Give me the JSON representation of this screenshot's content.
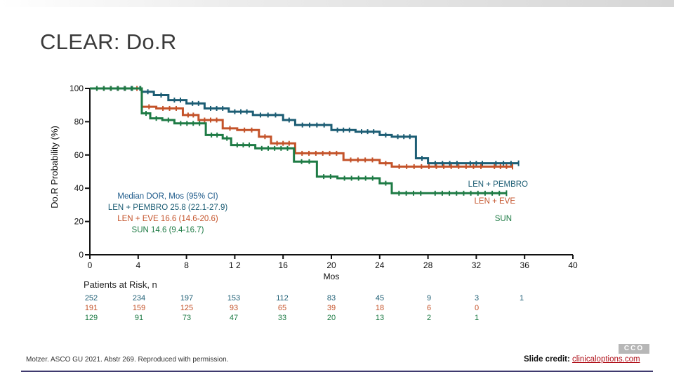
{
  "slide": {
    "title": "CLEAR: Do.R",
    "footnote": "Motzer. ASCO GU 2021. Abstr 269. Reproduced with permission.",
    "credit_label": "Slide credit:",
    "credit_link": "clinicaloptions.com",
    "logo_text": "CCO"
  },
  "colors": {
    "len_pembro": "#1c5d74",
    "len_eve": "#c4532a",
    "sun": "#1e7b45",
    "annotation": "#1d5a8a"
  },
  "annotation": {
    "heading": "Median DOR, Mos (95% CI)",
    "lines": [
      {
        "text": "LEN + PEMBRO 25.8 (22.1-27.9)",
        "series": "len_pembro"
      },
      {
        "text": "LEN + EVE 16.6 (14.6-20.6)",
        "series": "len_eve"
      },
      {
        "text": "SUN 14.6 (9.4-16.7)",
        "series": "sun"
      }
    ]
  },
  "risk_table": {
    "title": "Patients at Risk, n",
    "rows": [
      {
        "series": "len_pembro",
        "values": [
          "252",
          "234",
          "197",
          "153",
          "112",
          "83",
          "45",
          "9",
          "3",
          "1"
        ]
      },
      {
        "series": "len_eve",
        "values": [
          "191",
          "159",
          "125",
          "93",
          "65",
          "39",
          "18",
          "6",
          "0",
          ""
        ]
      },
      {
        "series": "sun",
        "values": [
          "129",
          "91",
          "73",
          "47",
          "33",
          "20",
          "13",
          "2",
          "1",
          ""
        ]
      }
    ]
  },
  "chart_data": {
    "type": "line",
    "title": "CLEAR: Do.R",
    "xlabel": "Mos",
    "ylabel": "Do.R Probability (%)",
    "xlim": [
      0,
      40
    ],
    "ylim": [
      0,
      100
    ],
    "x_ticks": [
      0,
      4,
      8,
      12,
      16,
      20,
      24,
      28,
      32,
      36,
      40
    ],
    "x_tick_labels": [
      "0",
      "4",
      "8",
      "1 2",
      "16",
      "20",
      "24",
      "28",
      "32",
      "36",
      "40"
    ],
    "y_ticks": [
      0,
      20,
      40,
      60,
      80,
      100
    ],
    "y_tick_labels": [
      "0",
      "20",
      "40",
      "60",
      "80",
      "100"
    ],
    "step": true,
    "series": [
      {
        "key": "len_pembro",
        "name": "LEN + PEMBRO",
        "points": [
          [
            0,
            100
          ],
          [
            4.0,
            100
          ],
          [
            4.3,
            98
          ],
          [
            5.3,
            96
          ],
          [
            6.5,
            93
          ],
          [
            8.0,
            91
          ],
          [
            9.5,
            88
          ],
          [
            11.5,
            86
          ],
          [
            13.5,
            84
          ],
          [
            16.0,
            81
          ],
          [
            17.0,
            78
          ],
          [
            20.0,
            75
          ],
          [
            22.0,
            74
          ],
          [
            24.0,
            72
          ],
          [
            25.0,
            71
          ],
          [
            27.0,
            58
          ],
          [
            28.0,
            55
          ],
          [
            31.0,
            55
          ],
          [
            33.0,
            55
          ],
          [
            35.5,
            55
          ]
        ],
        "label_end": "LEN + PEMBRO"
      },
      {
        "key": "len_eve",
        "name": "LEN + EVE",
        "points": [
          [
            0,
            100
          ],
          [
            3.5,
            100
          ],
          [
            4.3,
            89
          ],
          [
            5.5,
            88
          ],
          [
            7.7,
            84
          ],
          [
            9.0,
            81
          ],
          [
            11.0,
            76
          ],
          [
            12.2,
            75
          ],
          [
            14.0,
            71
          ],
          [
            15.0,
            67
          ],
          [
            17.0,
            61
          ],
          [
            21.0,
            57
          ],
          [
            24.0,
            55
          ],
          [
            25.0,
            53
          ],
          [
            33.0,
            53
          ],
          [
            35.0,
            53
          ]
        ],
        "label_end": "LEN + EVE"
      },
      {
        "key": "sun",
        "name": "SUN",
        "points": [
          [
            0,
            100
          ],
          [
            4.1,
            100
          ],
          [
            4.3,
            85
          ],
          [
            5.0,
            82
          ],
          [
            6.0,
            81
          ],
          [
            7.0,
            79
          ],
          [
            9.6,
            72
          ],
          [
            11.0,
            70
          ],
          [
            11.7,
            66
          ],
          [
            13.7,
            64
          ],
          [
            16.9,
            56
          ],
          [
            18.8,
            47
          ],
          [
            20.5,
            46
          ],
          [
            24.0,
            43
          ],
          [
            25.0,
            37
          ],
          [
            28.0,
            37
          ],
          [
            34.5,
            37
          ]
        ],
        "label_end": "SUN"
      }
    ]
  }
}
